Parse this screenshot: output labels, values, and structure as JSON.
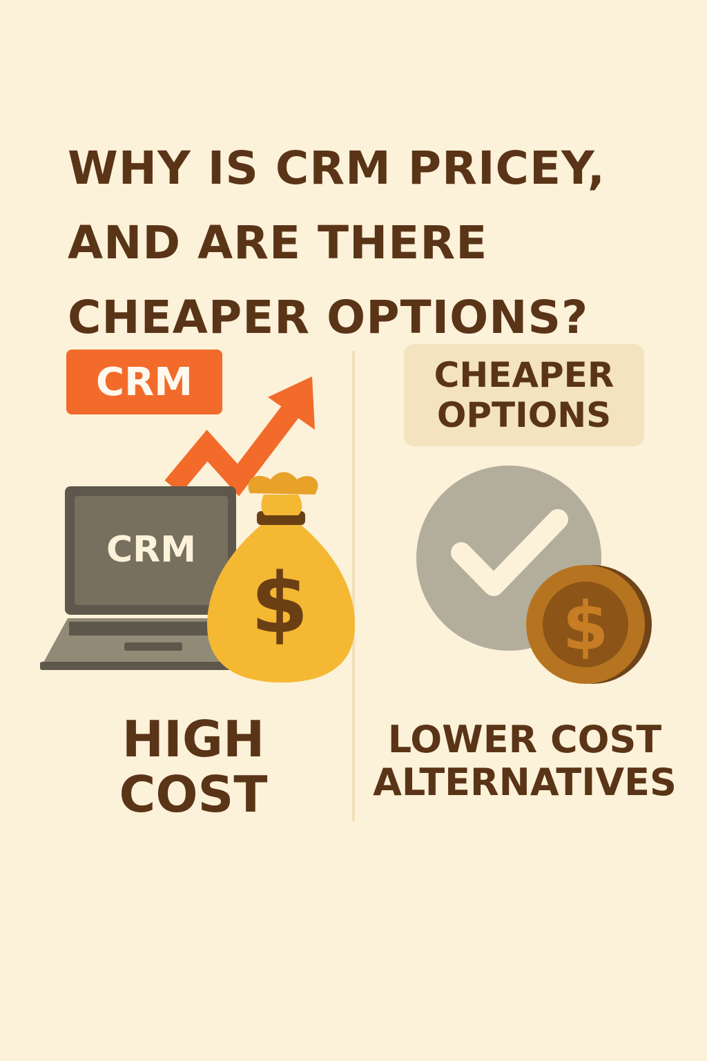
{
  "title": {
    "line1": "WHY IS CRM PRICEY,",
    "line2": "AND ARE THERE",
    "line3": "CHEAPER OPTIONS?"
  },
  "left": {
    "badge_label": "CRM",
    "laptop_screen_label": "CRM",
    "money_bag_symbol": "$",
    "caption_line1": "HIGH",
    "caption_line2": "COST",
    "icons": [
      "crm-laptop-icon",
      "trend-up-arrow-icon",
      "money-bag-icon"
    ]
  },
  "right": {
    "badge_line1": "CHEAPER",
    "badge_line2": "OPTIONS",
    "coin_symbol": "$",
    "caption_line1": "LOWER COST",
    "caption_line2": "ALTERNATIVES",
    "icons": [
      "checkmark-icon",
      "coin-icon"
    ]
  },
  "colors": {
    "background": "#fcf1d9",
    "text_brown": "#5a3417",
    "crm_badge_orange": "#f26b2a",
    "arrow_orange": "#f26b2a",
    "cheaper_badge_bg": "#f3e3bf",
    "laptop_gray": "#77705f",
    "money_bag_yellow": "#f5b833",
    "check_circle_gray": "#b3ad9c",
    "coin_brown": "#b77420"
  }
}
